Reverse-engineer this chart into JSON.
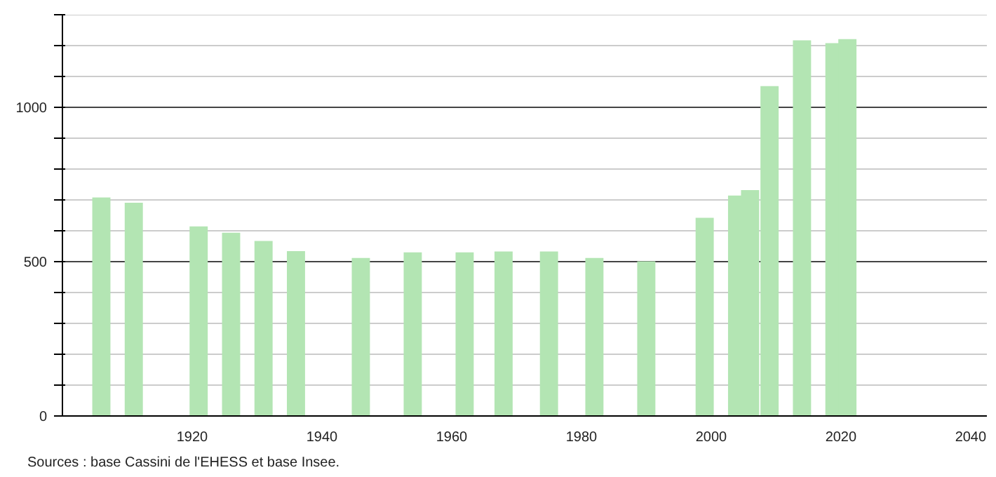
{
  "chart_data": {
    "type": "bar",
    "x": [
      1906,
      1911,
      1921,
      1926,
      1931,
      1936,
      1946,
      1954,
      1962,
      1968,
      1975,
      1982,
      1990,
      1999,
      2004,
      2006,
      2009,
      2014,
      2019,
      2021
    ],
    "values": [
      708,
      691,
      614,
      594,
      567,
      534,
      512,
      530,
      530,
      533,
      533,
      512,
      501,
      642,
      714,
      732,
      1069,
      1217,
      1208,
      1221
    ],
    "color": "#b3e5b3",
    "xlim": [
      1900,
      2042.5
    ],
    "xticks": [
      1920,
      1940,
      1960,
      1980,
      2000,
      2020,
      2040
    ],
    "ylim": [
      0,
      1300
    ],
    "yticks": [
      0,
      {
        "value": 100,
        "label": null
      },
      {
        "value": 200,
        "label": null
      },
      {
        "value": 300,
        "label": null
      },
      {
        "value": 400,
        "label": null
      },
      500,
      {
        "value": 600,
        "label": null
      },
      {
        "value": 700,
        "label": null
      },
      {
        "value": 800,
        "label": null
      },
      {
        "value": 900,
        "label": null
      },
      1000,
      {
        "value": 1100,
        "label": null
      },
      {
        "value": 1200,
        "label": null
      },
      {
        "value": 1300,
        "label": null
      }
    ],
    "grid": "y",
    "annotations": [
      "Sources : base Cassini de l'EHESS et base Insee."
    ]
  }
}
